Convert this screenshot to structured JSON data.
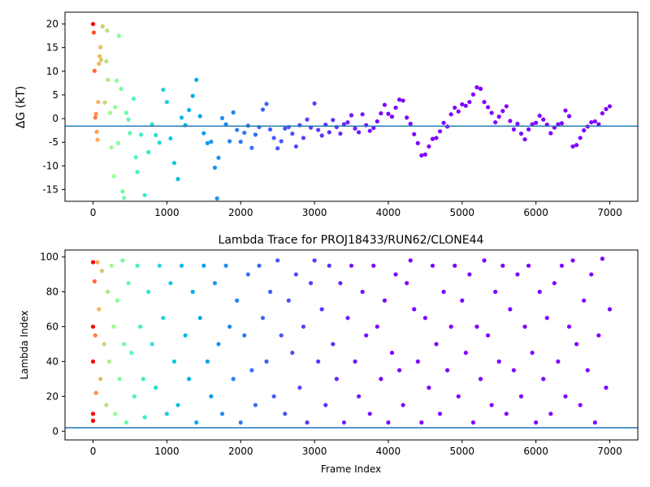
{
  "chart_data": [
    {
      "type": "scatter",
      "title": "",
      "xlabel": "",
      "ylabel": "ΔG (kT)",
      "xlim": [
        -380,
        7380
      ],
      "ylim": [
        -17.5,
        22.5
      ],
      "xticks": [
        0,
        1000,
        2000,
        3000,
        4000,
        5000,
        6000,
        7000
      ],
      "yticks": [
        -15,
        -10,
        -5,
        0,
        5,
        10,
        15,
        20
      ],
      "colormap": "rainbow (red at early frames, violet at late frames)",
      "reference_line": {
        "y": -1.6,
        "color": "#1f77b4"
      },
      "series_points": [
        [
          0,
          20
        ],
        [
          10,
          18.2
        ],
        [
          20,
          10.1
        ],
        [
          30,
          0.2
        ],
        [
          40,
          1.0
        ],
        [
          50,
          -2.8
        ],
        [
          60,
          -4.5
        ],
        [
          70,
          3.5
        ],
        [
          80,
          11.6
        ],
        [
          90,
          13.2
        ],
        [
          100,
          15.1
        ],
        [
          110,
          12.4
        ],
        [
          130,
          19.5
        ],
        [
          160,
          3.4
        ],
        [
          180,
          12.1
        ],
        [
          190,
          18.6
        ],
        [
          200,
          8.2
        ],
        [
          230,
          1.2
        ],
        [
          250,
          -6.1
        ],
        [
          280,
          -12.2
        ],
        [
          300,
          2.4
        ],
        [
          320,
          8.0
        ],
        [
          340,
          -5.2
        ],
        [
          350,
          17.5
        ],
        [
          380,
          6.3
        ],
        [
          400,
          -15.4
        ],
        [
          420,
          -16.8
        ],
        [
          450,
          1.2
        ],
        [
          480,
          -0.2
        ],
        [
          500,
          -3.1
        ],
        [
          550,
          4.2
        ],
        [
          580,
          -8.2
        ],
        [
          600,
          -11.3
        ],
        [
          650,
          -3.4
        ],
        [
          700,
          -16.2
        ],
        [
          750,
          -7.1
        ],
        [
          800,
          -1.2
        ],
        [
          850,
          -3.5
        ],
        [
          900,
          -5.1
        ],
        [
          950,
          6.1
        ],
        [
          1000,
          3.5
        ],
        [
          1050,
          -4.2
        ],
        [
          1100,
          -9.4
        ],
        [
          1150,
          -12.8
        ],
        [
          1200,
          0.2
        ],
        [
          1250,
          -1.4
        ],
        [
          1300,
          1.8
        ],
        [
          1350,
          4.8
        ],
        [
          1400,
          8.2
        ],
        [
          1450,
          0.5
        ],
        [
          1500,
          -3.1
        ],
        [
          1550,
          -5.2
        ],
        [
          1600,
          -4.9
        ],
        [
          1650,
          -10.4
        ],
        [
          1680,
          -16.9
        ],
        [
          1700,
          -8.3
        ],
        [
          1750,
          0.1
        ],
        [
          1800,
          -1.2
        ],
        [
          1850,
          -4.8
        ],
        [
          1900,
          1.3
        ],
        [
          1950,
          -2.4
        ],
        [
          2000,
          -4.9
        ],
        [
          2050,
          -3.0
        ],
        [
          2100,
          -1.5
        ],
        [
          2150,
          -6.2
        ],
        [
          2200,
          -3.4
        ],
        [
          2250,
          -1.8
        ],
        [
          2300,
          1.9
        ],
        [
          2350,
          3.1
        ],
        [
          2400,
          -2.3
        ],
        [
          2450,
          -4.1
        ],
        [
          2500,
          -6.3
        ],
        [
          2550,
          -4.8
        ],
        [
          2600,
          -2.1
        ],
        [
          2650,
          -1.8
        ],
        [
          2700,
          -3.2
        ],
        [
          2750,
          -5.9
        ],
        [
          2800,
          -1.4
        ],
        [
          2850,
          -4.1
        ],
        [
          2900,
          -0.2
        ],
        [
          2950,
          -1.9
        ],
        [
          3000,
          3.2
        ],
        [
          3050,
          -2.4
        ],
        [
          3100,
          -3.6
        ],
        [
          3150,
          -1.3
        ],
        [
          3200,
          -2.9
        ],
        [
          3250,
          -0.3
        ],
        [
          3300,
          -1.8
        ],
        [
          3350,
          -3.2
        ],
        [
          3400,
          -1.2
        ],
        [
          3450,
          -0.8
        ],
        [
          3500,
          0.7
        ],
        [
          3550,
          -2.1
        ],
        [
          3600,
          -2.9
        ],
        [
          3650,
          0.9
        ],
        [
          3700,
          -1.4
        ],
        [
          3750,
          -2.6
        ],
        [
          3800,
          -2.0
        ],
        [
          3850,
          -0.6
        ],
        [
          3900,
          1.1
        ],
        [
          3950,
          2.9
        ],
        [
          4000,
          1.0
        ],
        [
          4050,
          0.4
        ],
        [
          4100,
          2.3
        ],
        [
          4150,
          4.0
        ],
        [
          4200,
          3.8
        ],
        [
          4250,
          0.2
        ],
        [
          4300,
          -1.1
        ],
        [
          4350,
          -3.3
        ],
        [
          4400,
          -5.2
        ],
        [
          4450,
          -7.8
        ],
        [
          4500,
          -7.6
        ],
        [
          4550,
          -5.9
        ],
        [
          4600,
          -4.3
        ],
        [
          4650,
          -4.1
        ],
        [
          4700,
          -2.7
        ],
        [
          4750,
          -0.9
        ],
        [
          4800,
          -1.7
        ],
        [
          4850,
          0.9
        ],
        [
          4900,
          2.3
        ],
        [
          4950,
          1.5
        ],
        [
          5000,
          3.0
        ],
        [
          5050,
          2.7
        ],
        [
          5100,
          3.5
        ],
        [
          5150,
          5.1
        ],
        [
          5200,
          6.6
        ],
        [
          5250,
          6.3
        ],
        [
          5300,
          3.5
        ],
        [
          5350,
          2.4
        ],
        [
          5400,
          1.2
        ],
        [
          5450,
          -0.8
        ],
        [
          5500,
          0.4
        ],
        [
          5550,
          1.6
        ],
        [
          5600,
          2.6
        ],
        [
          5650,
          -0.5
        ],
        [
          5700,
          -2.3
        ],
        [
          5750,
          -1.1
        ],
        [
          5800,
          -3.2
        ],
        [
          5850,
          -4.4
        ],
        [
          5900,
          -2.3
        ],
        [
          5950,
          -1.2
        ],
        [
          6000,
          -0.9
        ],
        [
          6050,
          0.6
        ],
        [
          6100,
          -0.2
        ],
        [
          6150,
          -1.3
        ],
        [
          6200,
          -3.1
        ],
        [
          6250,
          -1.9
        ],
        [
          6300,
          -1.2
        ],
        [
          6350,
          -1.0
        ],
        [
          6400,
          1.7
        ],
        [
          6450,
          0.5
        ],
        [
          6500,
          -5.9
        ],
        [
          6550,
          -5.6
        ],
        [
          6600,
          -4.1
        ],
        [
          6650,
          -2.5
        ],
        [
          6700,
          -1.7
        ],
        [
          6750,
          -0.8
        ],
        [
          6800,
          -0.6
        ],
        [
          6850,
          -1.2
        ],
        [
          6900,
          1.1
        ],
        [
          6950,
          2.0
        ],
        [
          7000,
          2.6
        ]
      ]
    },
    {
      "type": "scatter",
      "title": "Lambda Trace for PROJ18433/RUN62/CLONE44",
      "xlabel": "Frame Index",
      "ylabel": "Lambda Index",
      "xlim": [
        -380,
        7380
      ],
      "ylim": [
        -5,
        104
      ],
      "xticks": [
        0,
        1000,
        2000,
        3000,
        4000,
        5000,
        6000,
        7000
      ],
      "yticks": [
        0,
        20,
        40,
        60,
        80,
        100
      ],
      "colormap": "rainbow (red at early frames, violet at late frames)",
      "reference_line": {
        "y": 2,
        "color": "#1f77b4"
      },
      "series_points": [
        [
          0,
          97
        ],
        [
          0,
          60
        ],
        [
          0,
          40
        ],
        [
          0,
          10
        ],
        [
          0,
          6
        ],
        [
          20,
          86
        ],
        [
          30,
          55
        ],
        [
          40,
          22
        ],
        [
          60,
          97
        ],
        [
          80,
          70
        ],
        [
          100,
          30
        ],
        [
          120,
          92
        ],
        [
          150,
          50
        ],
        [
          180,
          15
        ],
        [
          200,
          80
        ],
        [
          220,
          40
        ],
        [
          250,
          95
        ],
        [
          280,
          60
        ],
        [
          300,
          10
        ],
        [
          330,
          75
        ],
        [
          360,
          30
        ],
        [
          400,
          98
        ],
        [
          420,
          50
        ],
        [
          450,
          5
        ],
        [
          480,
          85
        ],
        [
          520,
          45
        ],
        [
          560,
          20
        ],
        [
          600,
          95
        ],
        [
          640,
          60
        ],
        [
          680,
          30
        ],
        [
          700,
          8
        ],
        [
          750,
          80
        ],
        [
          800,
          50
        ],
        [
          850,
          25
        ],
        [
          900,
          95
        ],
        [
          950,
          65
        ],
        [
          1000,
          10
        ],
        [
          1050,
          85
        ],
        [
          1100,
          40
        ],
        [
          1150,
          15
        ],
        [
          1200,
          95
        ],
        [
          1250,
          55
        ],
        [
          1300,
          30
        ],
        [
          1350,
          80
        ],
        [
          1400,
          5
        ],
        [
          1450,
          65
        ],
        [
          1500,
          95
        ],
        [
          1550,
          40
        ],
        [
          1600,
          20
        ],
        [
          1650,
          85
        ],
        [
          1700,
          50
        ],
        [
          1750,
          10
        ],
        [
          1800,
          95
        ],
        [
          1850,
          60
        ],
        [
          1900,
          30
        ],
        [
          1950,
          75
        ],
        [
          2000,
          5
        ],
        [
          2050,
          55
        ],
        [
          2100,
          90
        ],
        [
          2150,
          35
        ],
        [
          2200,
          15
        ],
        [
          2250,
          95
        ],
        [
          2300,
          65
        ],
        [
          2350,
          40
        ],
        [
          2400,
          80
        ],
        [
          2450,
          20
        ],
        [
          2500,
          98
        ],
        [
          2550,
          55
        ],
        [
          2600,
          10
        ],
        [
          2650,
          75
        ],
        [
          2700,
          45
        ],
        [
          2750,
          90
        ],
        [
          2800,
          25
        ],
        [
          2850,
          60
        ],
        [
          2900,
          5
        ],
        [
          2950,
          85
        ],
        [
          3000,
          98
        ],
        [
          3050,
          40
        ],
        [
          3100,
          70
        ],
        [
          3150,
          15
        ],
        [
          3200,
          95
        ],
        [
          3250,
          50
        ],
        [
          3300,
          30
        ],
        [
          3350,
          85
        ],
        [
          3400,
          5
        ],
        [
          3450,
          65
        ],
        [
          3500,
          95
        ],
        [
          3550,
          40
        ],
        [
          3600,
          20
        ],
        [
          3650,
          80
        ],
        [
          3700,
          55
        ],
        [
          3750,
          10
        ],
        [
          3800,
          95
        ],
        [
          3850,
          60
        ],
        [
          3900,
          30
        ],
        [
          3950,
          75
        ],
        [
          4000,
          5
        ],
        [
          4050,
          45
        ],
        [
          4100,
          90
        ],
        [
          4150,
          35
        ],
        [
          4200,
          15
        ],
        [
          4250,
          85
        ],
        [
          4300,
          98
        ],
        [
          4350,
          70
        ],
        [
          4400,
          40
        ],
        [
          4450,
          5
        ],
        [
          4500,
          65
        ],
        [
          4550,
          25
        ],
        [
          4600,
          95
        ],
        [
          4650,
          50
        ],
        [
          4700,
          10
        ],
        [
          4750,
          80
        ],
        [
          4800,
          35
        ],
        [
          4850,
          60
        ],
        [
          4900,
          95
        ],
        [
          4950,
          20
        ],
        [
          5000,
          75
        ],
        [
          5050,
          45
        ],
        [
          5100,
          90
        ],
        [
          5150,
          5
        ],
        [
          5200,
          60
        ],
        [
          5250,
          30
        ],
        [
          5300,
          98
        ],
        [
          5350,
          55
        ],
        [
          5400,
          15
        ],
        [
          5450,
          80
        ],
        [
          5500,
          40
        ],
        [
          5550,
          95
        ],
        [
          5600,
          10
        ],
        [
          5650,
          70
        ],
        [
          5700,
          35
        ],
        [
          5750,
          90
        ],
        [
          5800,
          20
        ],
        [
          5850,
          60
        ],
        [
          5900,
          95
        ],
        [
          5950,
          45
        ],
        [
          6000,
          5
        ],
        [
          6050,
          80
        ],
        [
          6100,
          30
        ],
        [
          6150,
          65
        ],
        [
          6200,
          10
        ],
        [
          6250,
          85
        ],
        [
          6300,
          40
        ],
        [
          6350,
          95
        ],
        [
          6400,
          20
        ],
        [
          6450,
          60
        ],
        [
          6500,
          98
        ],
        [
          6550,
          50
        ],
        [
          6600,
          15
        ],
        [
          6650,
          75
        ],
        [
          6700,
          35
        ],
        [
          6750,
          90
        ],
        [
          6800,
          5
        ],
        [
          6850,
          55
        ],
        [
          6900,
          99
        ],
        [
          6950,
          25
        ],
        [
          7000,
          70
        ]
      ]
    }
  ]
}
